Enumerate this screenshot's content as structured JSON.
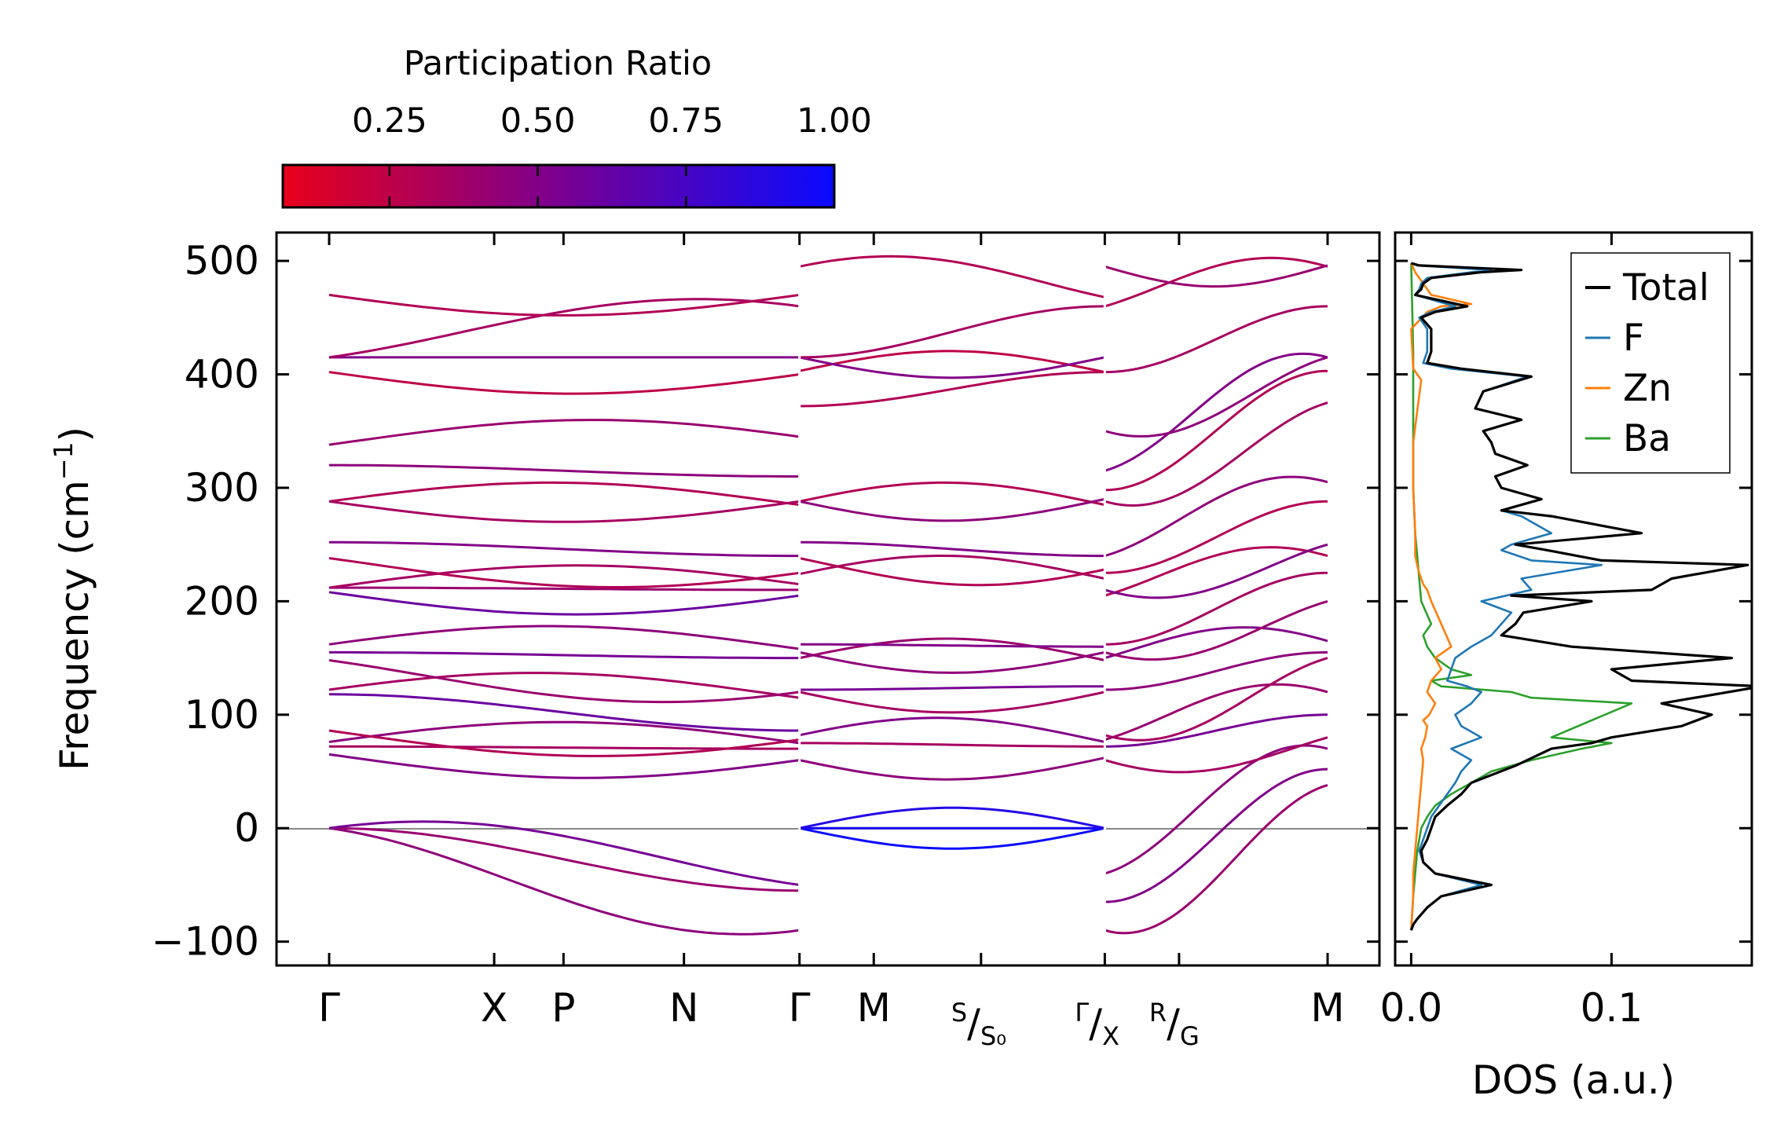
{
  "chart_data": [
    {
      "type": "line",
      "name": "phonon band structure",
      "ylabel": "Frequency (cm",
      "ylabel_sup": "−1",
      "ylabel_end": ")",
      "ylim": [
        -121,
        525
      ],
      "yticks": [
        -100,
        0,
        100,
        200,
        300,
        400,
        500
      ],
      "ytick_labels": [
        "−100",
        "0",
        "100",
        "200",
        "300",
        "400",
        "500"
      ],
      "kpath": [
        {
          "label": "Γ",
          "pos": 0.0
        },
        {
          "label": "X",
          "pos": 1.0
        },
        {
          "label": "P",
          "pos": 1.42
        },
        {
          "label": "N",
          "pos": 2.15
        },
        {
          "label": "Γ",
          "pos": 2.85
        },
        {
          "label": "M",
          "pos": 3.3
        },
        {
          "label": "S",
          "sub": "S₀",
          "pos": 3.95
        },
        {
          "label": "Γ",
          "sub": "X",
          "pos": 4.7
        },
        {
          "label": "R",
          "sub": "G",
          "pos": 5.15
        },
        {
          "label": "M",
          "pos": 6.05
        }
      ],
      "kmax": 6.05,
      "zero_line": 0,
      "colorbar": {
        "title": "Participation Ratio",
        "tick_values": [
          0.25,
          0.5,
          0.75,
          1.0
        ],
        "tick_labels": [
          "0.25",
          "0.50",
          "0.75",
          "1.00"
        ],
        "range": [
          0.07,
          1.0
        ],
        "color_low": "#e8001a",
        "color_mid": "#7a0090",
        "color_high": "#0a0aff"
      },
      "segments": [
        {
          "x0": 0.0,
          "x1": 2.85,
          "start": [
            0,
            0,
            0,
            65,
            72,
            76,
            86,
            118,
            122,
            148,
            155,
            162,
            208,
            212,
            212,
            238,
            252,
            288,
            288,
            320,
            338,
            402,
            415,
            415,
            470
          ],
          "end": [
            -90,
            -55,
            -50,
            60,
            70,
            75,
            78,
            86,
            115,
            120,
            150,
            158,
            205,
            210,
            215,
            225,
            240,
            285,
            288,
            310,
            345,
            400,
            415,
            460,
            470
          ],
          "pr": [
            0.45,
            0.4,
            0.55,
            0.5,
            0.35,
            0.45,
            0.3,
            0.6,
            0.35,
            0.4,
            0.55,
            0.45,
            0.6,
            0.4,
            0.35,
            0.3,
            0.5,
            0.3,
            0.35,
            0.45,
            0.4,
            0.25,
            0.5,
            0.35,
            0.3
          ]
        },
        {
          "x0": 2.85,
          "x1": 4.7,
          "start": [
            0,
            0,
            0,
            60,
            75,
            82,
            120,
            122,
            150,
            155,
            162,
            224,
            238,
            252,
            288,
            288,
            372,
            403,
            415,
            415,
            495
          ],
          "end": [
            0,
            0,
            0,
            62,
            72,
            76,
            120,
            125,
            148,
            155,
            160,
            220,
            228,
            240,
            285,
            290,
            402,
            402,
            415,
            460,
            468
          ],
          "pr": [
            1.0,
            0.95,
            0.9,
            0.45,
            0.35,
            0.5,
            0.35,
            0.55,
            0.4,
            0.45,
            0.5,
            0.35,
            0.3,
            0.5,
            0.3,
            0.45,
            0.3,
            0.25,
            0.5,
            0.35,
            0.3
          ]
        },
        {
          "x0": 4.7,
          "x1": 6.05,
          "start": [
            -90,
            -65,
            -40,
            60,
            72,
            78,
            82,
            122,
            150,
            155,
            162,
            205,
            210,
            225,
            240,
            288,
            298,
            315,
            350,
            402,
            460,
            495
          ],
          "end": [
            38,
            52,
            70,
            80,
            100,
            120,
            150,
            155,
            165,
            200,
            225,
            240,
            250,
            288,
            305,
            375,
            403,
            415,
            415,
            460,
            495,
            496
          ],
          "pr": [
            0.4,
            0.5,
            0.45,
            0.35,
            0.55,
            0.4,
            0.35,
            0.45,
            0.5,
            0.4,
            0.35,
            0.3,
            0.5,
            0.3,
            0.45,
            0.35,
            0.3,
            0.5,
            0.45,
            0.35,
            0.3,
            0.4
          ]
        }
      ]
    },
    {
      "type": "line",
      "name": "density of states",
      "xlabel": "DOS (a.u.)",
      "xticks": [
        0.0,
        0.1
      ],
      "xtick_labels": [
        "0.0",
        "0.1"
      ],
      "xlim": [
        -0.008,
        0.17
      ],
      "ylim": [
        -121,
        525
      ],
      "series": [
        {
          "name": "Total",
          "color": "#000000",
          "x": [
            0.0,
            0.001,
            0.003,
            0.008,
            0.015,
            0.04,
            0.012,
            0.006,
            0.005,
            0.008,
            0.01,
            0.012,
            0.018,
            0.025,
            0.03,
            0.052,
            0.07,
            0.09,
            0.1,
            0.135,
            0.15,
            0.125,
            0.175,
            0.11,
            0.1,
            0.16,
            0.08,
            0.045,
            0.052,
            0.056,
            0.09,
            0.05,
            0.12,
            0.13,
            0.168,
            0.095,
            0.068,
            0.052,
            0.115,
            0.07,
            0.045,
            0.065,
            0.045,
            0.042,
            0.058,
            0.042,
            0.04,
            0.036,
            0.055,
            0.032,
            0.036,
            0.06,
            0.025,
            0.008,
            0.01,
            0.01,
            0.005,
            0.012,
            0.028,
            0.015,
            0.002,
            0.005,
            0.006,
            0.01,
            0.035,
            0.055,
            0.004,
            0.0
          ],
          "y": [
            -90,
            -85,
            -80,
            -70,
            -60,
            -50,
            -40,
            -30,
            -20,
            -10,
            0,
            10,
            20,
            30,
            40,
            55,
            70,
            75,
            80,
            90,
            100,
            110,
            125,
            130,
            140,
            150,
            160,
            170,
            180,
            190,
            200,
            205,
            210,
            220,
            232,
            236,
            245,
            250,
            260,
            275,
            280,
            290,
            300,
            310,
            320,
            330,
            340,
            350,
            360,
            370,
            385,
            398,
            405,
            410,
            420,
            440,
            450,
            455,
            460,
            465,
            470,
            475,
            480,
            485,
            490,
            492,
            496,
            498
          ]
        },
        {
          "name": "F",
          "color": "#1f77b4",
          "x": [
            0.0,
            0.001,
            0.003,
            0.008,
            0.015,
            0.035,
            0.012,
            0.006,
            0.004,
            0.006,
            0.008,
            0.01,
            0.014,
            0.018,
            0.022,
            0.025,
            0.03,
            0.02,
            0.035,
            0.025,
            0.022,
            0.03,
            0.035,
            0.028,
            0.018,
            0.02,
            0.022,
            0.03,
            0.04,
            0.045,
            0.05,
            0.035,
            0.06,
            0.055,
            0.095,
            0.06,
            0.045,
            0.05,
            0.07,
            0.055,
            0.045,
            0.065,
            0.045,
            0.042,
            0.058,
            0.042,
            0.04,
            0.036,
            0.055,
            0.032,
            0.036,
            0.058,
            0.02,
            0.006,
            0.008,
            0.008,
            0.004,
            0.01,
            0.022,
            0.012,
            0.002,
            0.004,
            0.005,
            0.008,
            0.03,
            0.04,
            0.003,
            0.0
          ],
          "y": [
            -90,
            -85,
            -80,
            -70,
            -60,
            -50,
            -40,
            -30,
            -20,
            -10,
            0,
            10,
            20,
            30,
            40,
            50,
            60,
            70,
            80,
            90,
            100,
            110,
            120,
            125,
            130,
            140,
            150,
            160,
            170,
            180,
            190,
            200,
            210,
            220,
            232,
            236,
            245,
            250,
            260,
            275,
            280,
            290,
            300,
            310,
            320,
            330,
            340,
            350,
            360,
            370,
            385,
            398,
            405,
            410,
            420,
            440,
            450,
            455,
            460,
            465,
            470,
            475,
            480,
            485,
            490,
            492,
            496,
            498
          ]
        },
        {
          "name": "Zn",
          "color": "#ff7f0e",
          "x": [
            0.0,
            0.001,
            0.001,
            0.002,
            0.003,
            0.004,
            0.005,
            0.006,
            0.005,
            0.007,
            0.008,
            0.006,
            0.009,
            0.012,
            0.008,
            0.01,
            0.015,
            0.012,
            0.02,
            0.015,
            0.01,
            0.008,
            0.006,
            0.005,
            0.004,
            0.003,
            0.002,
            0.002,
            0.001,
            0.001,
            0.005,
            0.001,
            0.0,
            0.008,
            0.015,
            0.03,
            0.01,
            0.002,
            0.0
          ],
          "y": [
            -90,
            -60,
            -40,
            -20,
            0,
            20,
            40,
            60,
            70,
            80,
            90,
            95,
            100,
            110,
            120,
            130,
            140,
            150,
            160,
            180,
            200,
            210,
            215,
            220,
            225,
            232,
            240,
            260,
            300,
            340,
            395,
            405,
            440,
            455,
            460,
            462,
            470,
            490,
            498
          ]
        },
        {
          "name": "Ba",
          "color": "#2ca02c",
          "x": [
            0.0,
            0.001,
            0.002,
            0.003,
            0.005,
            0.008,
            0.012,
            0.02,
            0.03,
            0.04,
            0.06,
            0.085,
            0.1,
            0.07,
            0.11,
            0.06,
            0.05,
            0.015,
            0.01,
            0.03,
            0.02,
            0.012,
            0.008,
            0.006,
            0.01,
            0.005,
            0.004,
            0.003,
            0.002,
            0.001,
            0.001,
            0.001,
            0.0
          ],
          "y": [
            -90,
            -60,
            -40,
            -20,
            0,
            10,
            20,
            30,
            40,
            50,
            60,
            70,
            75,
            80,
            110,
            115,
            120,
            125,
            130,
            135,
            140,
            150,
            160,
            170,
            180,
            200,
            220,
            240,
            260,
            300,
            340,
            420,
            498
          ]
        }
      ],
      "legend_location": "top-right"
    }
  ]
}
